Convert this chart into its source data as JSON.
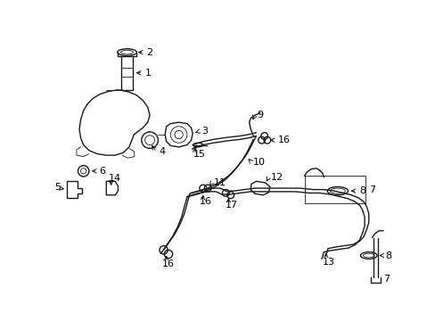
{
  "bg_color": "#ffffff",
  "line_color": "#1a1a1a",
  "fontsize": 8,
  "lw": 1.0,
  "lw_thin": 0.6
}
